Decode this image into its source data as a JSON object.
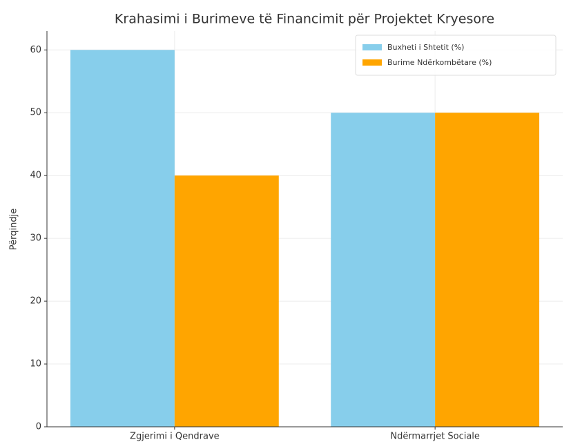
{
  "chart_data": {
    "type": "bar",
    "title": "Krahasimi i Burimeve të Financimit për Projektet Kryesore",
    "ylabel": "Përqindje",
    "categories": [
      "Zgjerimi i Qendrave",
      "Ndërmarrjet Sociale"
    ],
    "series": [
      {
        "name": "Buxheti i Shtetit (%)",
        "color": "#87ceeb",
        "values": [
          60,
          50
        ]
      },
      {
        "name": "Burime Ndërkombëtare (%)",
        "color": "#ffa500",
        "values": [
          40,
          50
        ]
      }
    ],
    "ylim": [
      0,
      63
    ],
    "yticks": [
      0,
      10,
      20,
      30,
      40,
      50,
      60
    ],
    "grid": true,
    "legend": "upper right"
  }
}
